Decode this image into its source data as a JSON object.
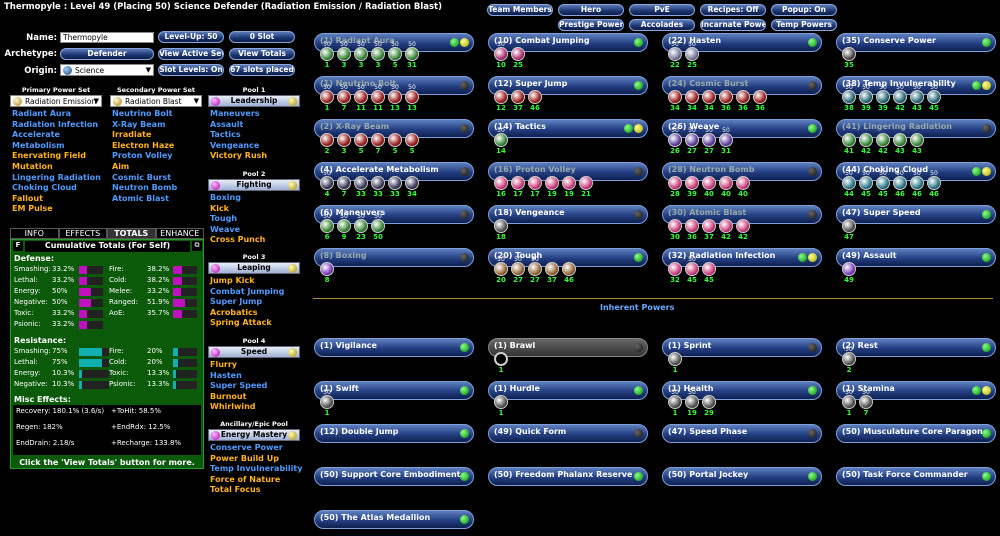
{
  "title": "Thermopyle : Level 49 (Placing 50) Science Defender (Radiation Emission / Radiation Blast)",
  "top_buttons": {
    "team_members": "Team Members",
    "hero": "Hero",
    "pve": "PvE",
    "recipes": "Recipes: Off",
    "popup": "Popup: On",
    "prestige": "Prestige Powers",
    "accolades": "Accolades",
    "incarnate": "Incarnate Powers",
    "temp": "Temp Powers"
  },
  "form": {
    "name_label": "Name:",
    "name_value": "Thermopyle",
    "archetype_label": "Archetype:",
    "archetype_value": "Defender",
    "origin_label": "Origin:",
    "origin_value": "Science",
    "level_up": "Level-Up: 50",
    "zero_slot": "0 Slot",
    "view_active_sets": "View Active Sets",
    "view_totals": "View Totals",
    "slot_levels": "Slot Levels: On",
    "slots_placed": "67 slots placed"
  },
  "primary": {
    "header": "Primary Power Set",
    "value": "Radiation Emission",
    "powers": [
      {
        "t": "Radiant Aura",
        "c": "blue"
      },
      {
        "t": "Radiation Infection",
        "c": "blue"
      },
      {
        "t": "Accelerate",
        "c": "blue"
      },
      {
        "t": "Metabolism",
        "c": "blue"
      },
      {
        "t": "Enervating Field",
        "c": "orange"
      },
      {
        "t": "Mutation",
        "c": "orange"
      },
      {
        "t": "Lingering Radiation",
        "c": "blue"
      },
      {
        "t": "Choking Cloud",
        "c": "blue"
      },
      {
        "t": "Fallout",
        "c": "orange"
      },
      {
        "t": "EM Pulse",
        "c": "orange"
      }
    ]
  },
  "secondary": {
    "header": "Secondary Power Set",
    "value": "Radiation Blast",
    "powers": [
      {
        "t": "Neutrino Bolt",
        "c": "blue"
      },
      {
        "t": "X-Ray Beam",
        "c": "blue"
      },
      {
        "t": "Irradiate",
        "c": "orange"
      },
      {
        "t": "Electron Haze",
        "c": "orange"
      },
      {
        "t": "Proton Volley",
        "c": "blue"
      },
      {
        "t": "Aim",
        "c": "orange"
      },
      {
        "t": "Cosmic Burst",
        "c": "blue"
      },
      {
        "t": "Neutron Bomb",
        "c": "blue"
      },
      {
        "t": "Atomic Blast",
        "c": "blue"
      }
    ]
  },
  "pools": [
    {
      "header": "Pool 1",
      "name": "Leadership",
      "powers": [
        {
          "t": "Maneuvers",
          "c": "blue"
        },
        {
          "t": "Assault",
          "c": "blue"
        },
        {
          "t": "Tactics",
          "c": "blue"
        },
        {
          "t": "Vengeance",
          "c": "blue"
        },
        {
          "t": "Victory Rush",
          "c": "orange"
        }
      ]
    },
    {
      "header": "Pool 2",
      "name": "Fighting",
      "powers": [
        {
          "t": "Boxing",
          "c": "blue"
        },
        {
          "t": "Kick",
          "c": "orange"
        },
        {
          "t": "Tough",
          "c": "blue"
        },
        {
          "t": "Weave",
          "c": "blue"
        },
        {
          "t": "Cross Punch",
          "c": "orange"
        }
      ]
    },
    {
      "header": "Pool 3",
      "name": "Leaping",
      "powers": [
        {
          "t": "Jump Kick",
          "c": "orange"
        },
        {
          "t": "Combat Jumping",
          "c": "blue"
        },
        {
          "t": "Super Jump",
          "c": "blue"
        },
        {
          "t": "Acrobatics",
          "c": "orange"
        },
        {
          "t": "Spring Attack",
          "c": "orange"
        }
      ]
    },
    {
      "header": "Pool 4",
      "name": "Speed",
      "powers": [
        {
          "t": "Flurry",
          "c": "orange"
        },
        {
          "t": "Hasten",
          "c": "blue"
        },
        {
          "t": "Super Speed",
          "c": "blue"
        },
        {
          "t": "Burnout",
          "c": "orange"
        },
        {
          "t": "Whirlwind",
          "c": "orange"
        }
      ]
    },
    {
      "header": "Ancillary/Epic Pool",
      "name": "Energy Mastery",
      "powers": [
        {
          "t": "Conserve Power",
          "c": "blue"
        },
        {
          "t": "Power Build Up",
          "c": "orange"
        },
        {
          "t": "Temp Invulnerability",
          "c": "blue"
        },
        {
          "t": "Force of Nature",
          "c": "orange"
        },
        {
          "t": "Total Focus",
          "c": "orange"
        }
      ]
    }
  ],
  "tabs": [
    "INFO",
    "EFFECTS",
    "TOTALS",
    "ENHANCE"
  ],
  "totals": {
    "title": "Cumulative Totals (For Self)",
    "f": "F",
    "defense_h": "Defense:",
    "resistance_h": "Resistance:",
    "misc_h": "Misc Effects:",
    "defense": [
      {
        "l": "Smashing:",
        "v": "33.2%",
        "p": 33.2
      },
      {
        "l": "Lethal:",
        "v": "33.2%",
        "p": 33.2
      },
      {
        "l": "Energy:",
        "v": "50%",
        "p": 50
      },
      {
        "l": "Negative:",
        "v": "50%",
        "p": 50
      },
      {
        "l": "Toxic:",
        "v": "33.2%",
        "p": 33.2
      },
      {
        "l": "Psionic:",
        "v": "33.2%",
        "p": 33.2
      }
    ],
    "defense2": [
      {
        "l": "Fire:",
        "v": "38.2%",
        "p": 38.2
      },
      {
        "l": "Cold:",
        "v": "38.2%",
        "p": 38.2
      },
      {
        "l": "Melee:",
        "v": "33.2%",
        "p": 33.2
      },
      {
        "l": "Ranged:",
        "v": "51.9%",
        "p": 51.9
      },
      {
        "l": "AoE:",
        "v": "35.7%",
        "p": 35.7
      }
    ],
    "resistance": [
      {
        "l": "Smashing:",
        "v": "75%",
        "p": 75
      },
      {
        "l": "Lethal:",
        "v": "75%",
        "p": 75
      },
      {
        "l": "Energy:",
        "v": "10.3%",
        "p": 10.3
      },
      {
        "l": "Negative:",
        "v": "10.3%",
        "p": 10.3
      }
    ],
    "resistance2": [
      {
        "l": "Fire:",
        "v": "20%",
        "p": 20
      },
      {
        "l": "Cold:",
        "v": "20%",
        "p": 20
      },
      {
        "l": "Toxic:",
        "v": "13.3%",
        "p": 13.3
      },
      {
        "l": "Psionic:",
        "v": "13.3%",
        "p": 13.3
      }
    ],
    "misc": [
      "Recovery: 180.1% (3.6/s)",
      "+ToHit: 58.5%",
      "Regen: 182%",
      "+EndRdx: 12.5%",
      "EndDrain: 2.18/s",
      "+Recharge: 133.8%"
    ],
    "footer": "Click the 'View Totals' button for more."
  },
  "slots": [
    {
      "n": "(1) Radiant Aura",
      "dim": true,
      "led": "y",
      "e": [
        [
          "50",
          "1"
        ],
        [
          "50",
          "3"
        ],
        [
          "50",
          "3"
        ],
        [
          "50",
          "3"
        ],
        [
          "50",
          "5"
        ],
        [
          "50",
          "31"
        ]
      ],
      "c": "#3a8a3a"
    },
    {
      "n": "(10) Combat Jumping",
      "led": "g",
      "e": [
        [
          "50",
          "10"
        ],
        [
          "",
          "25"
        ]
      ],
      "c": "#b03070"
    },
    {
      "n": "(22) Hasten",
      "led": "g",
      "e": [
        [
          "50",
          "22"
        ],
        [
          "50",
          "25"
        ]
      ],
      "c": "#7a7aa0"
    },
    {
      "n": "(35) Conserve Power",
      "led": "g",
      "e": [
        [
          "",
          "35"
        ]
      ],
      "c": "#4a4a4a"
    },
    {
      "n": "(1) Neutrino Bolt",
      "dim": true,
      "led": "d",
      "e": [
        [
          "50",
          "1"
        ],
        [
          "50",
          "7"
        ],
        [
          "50",
          "11"
        ],
        [
          "50",
          "11"
        ],
        [
          "50",
          "13"
        ],
        [
          "50",
          "13"
        ]
      ],
      "c": "#a02020"
    },
    {
      "n": "(12) Super Jump",
      "led": "g",
      "e": [
        [
          "",
          "12"
        ],
        [
          "",
          "37"
        ],
        [
          "",
          "46"
        ]
      ],
      "c": "#a02020"
    },
    {
      "n": "(24) Cosmic Burst",
      "dim": true,
      "led": "d",
      "e": [
        [
          "",
          "34"
        ],
        [
          "",
          "34"
        ],
        [
          "",
          "34"
        ],
        [
          "",
          "36"
        ],
        [
          "",
          "36"
        ],
        [
          "",
          "36"
        ]
      ],
      "c": "#a02020"
    },
    {
      "n": "(38) Temp Invulnerability",
      "led": "y",
      "e": [
        [
          "50",
          "38"
        ],
        [
          "50",
          "39"
        ],
        [
          "50",
          "39"
        ],
        [
          "50",
          "42"
        ],
        [
          "50",
          "43"
        ],
        [
          "50",
          "45"
        ]
      ],
      "c": "#2a6a7a"
    },
    {
      "n": "(2) X-Ray Beam",
      "dim": true,
      "led": "d",
      "e": [
        [
          "",
          "2"
        ],
        [
          "",
          "3"
        ],
        [
          "",
          "5"
        ],
        [
          "",
          "7"
        ],
        [
          "",
          "5"
        ],
        [
          "",
          "5"
        ]
      ],
      "c": "#a02020"
    },
    {
      "n": "(14) Tactics",
      "led": "y",
      "e": [
        [
          "50",
          "14"
        ]
      ],
      "c": "#3a8a3a"
    },
    {
      "n": "(26) Weave",
      "led": "g",
      "e": [
        [
          "50",
          "26"
        ],
        [
          "50",
          "27"
        ],
        [
          "50",
          "27"
        ],
        [
          "50",
          "31"
        ]
      ],
      "c": "#6040a0"
    },
    {
      "n": "(41) Lingering Radiation",
      "dim": true,
      "led": "d",
      "e": [
        [
          "",
          "41"
        ],
        [
          "",
          "42"
        ],
        [
          "",
          "42"
        ],
        [
          "",
          "43"
        ],
        [
          "",
          "43"
        ]
      ],
      "c": "#3a8a3a"
    },
    {
      "n": "(4) Accelerate Metabolism",
      "led": "d",
      "e": [
        [
          "50",
          "4"
        ],
        [
          "",
          "7"
        ],
        [
          "",
          "33"
        ],
        [
          "",
          "33"
        ],
        [
          "",
          "33"
        ],
        [
          "",
          "34"
        ]
      ],
      "c": "#3a3a5a"
    },
    {
      "n": "(16) Proton Volley",
      "dim": true,
      "led": "d",
      "e": [
        [
          "",
          "16"
        ],
        [
          "",
          "17"
        ],
        [
          "",
          "17"
        ],
        [
          "",
          "19"
        ],
        [
          "",
          "19"
        ],
        [
          "",
          "21"
        ]
      ],
      "c": "#d04080"
    },
    {
      "n": "(28) Neutron Bomb",
      "dim": true,
      "led": "d",
      "e": [
        [
          "",
          "28"
        ],
        [
          "",
          "39"
        ],
        [
          "",
          "40"
        ],
        [
          "",
          "40"
        ],
        [
          "",
          "40"
        ]
      ],
      "c": "#d04080"
    },
    {
      "n": "(44) Choking Cloud",
      "led": "y",
      "e": [
        [
          "50",
          "44"
        ],
        [
          "50",
          "45"
        ],
        [
          "50",
          "45"
        ],
        [
          "50",
          "46"
        ],
        [
          "50",
          "46"
        ],
        [
          "50",
          "46"
        ]
      ],
      "c": "#2a7a8a"
    },
    {
      "n": "(6) Maneuvers",
      "led": "d",
      "e": [
        [
          "50",
          "6"
        ],
        [
          "50",
          "9"
        ],
        [
          "50",
          "23"
        ],
        [
          "50",
          "50"
        ]
      ],
      "c": "#3a8a3a"
    },
    {
      "n": "(18) Vengeance",
      "led": "d",
      "e": [
        [
          "",
          "18"
        ]
      ],
      "c": "#555"
    },
    {
      "n": "(30) Atomic Blast",
      "dim": true,
      "led": "d",
      "e": [
        [
          "",
          "30"
        ],
        [
          "",
          "36"
        ],
        [
          "",
          "37"
        ],
        [
          "",
          "42"
        ],
        [
          "",
          "42"
        ]
      ],
      "c": "#d04080"
    },
    {
      "n": "(47) Super Speed",
      "led": "g",
      "e": [
        [
          "",
          "47"
        ]
      ],
      "c": "#555"
    },
    {
      "n": "(8) Boxing",
      "dim": true,
      "led": "d",
      "e": [
        [
          "",
          "8"
        ]
      ],
      "c": "#8040c0"
    },
    {
      "n": "(20) Tough",
      "led": "g",
      "e": [
        [
          "50",
          "20"
        ],
        [
          "50",
          "27"
        ],
        [
          "50",
          "27"
        ],
        [
          "",
          "37"
        ],
        [
          "",
          "46"
        ]
      ],
      "c": "#9a6a3a"
    },
    {
      "n": "(32) Radiation Infection",
      "led": "y",
      "e": [
        [
          "",
          "32"
        ],
        [
          "50",
          "45"
        ],
        [
          "",
          "45"
        ]
      ],
      "c": "#d04080"
    },
    {
      "n": "(49) Assault",
      "led": "g",
      "e": [
        [
          "",
          "49"
        ]
      ],
      "c": "#8040c0"
    }
  ],
  "inherent_header": "Inherent Powers",
  "inherent": [
    {
      "n": "(1) Vigilance",
      "led": "g",
      "e": []
    },
    {
      "n": "(1) Brawl",
      "brawl": true,
      "led": "d",
      "e": [
        [
          "",
          "1"
        ]
      ]
    },
    {
      "n": "(1) Sprint",
      "led": "d",
      "e": [
        [
          "",
          "1"
        ]
      ]
    },
    {
      "n": "(2) Rest",
      "led": "g",
      "e": [
        [
          "50",
          "2"
        ]
      ]
    },
    {
      "n": "(1) Swift",
      "led": "g",
      "e": [
        [
          "50",
          "1"
        ]
      ]
    },
    {
      "n": "(1) Hurdle",
      "led": "g",
      "e": [
        [
          "",
          "1"
        ]
      ]
    },
    {
      "n": "(1) Health",
      "led": "g",
      "e": [
        [
          "50",
          "1"
        ],
        [
          "50",
          "19"
        ],
        [
          "",
          "29"
        ]
      ]
    },
    {
      "n": "(1) Stamina",
      "led": "y",
      "e": [
        [
          "50",
          "1"
        ],
        [
          "50",
          "7"
        ]
      ]
    },
    {
      "n": "(12) Double Jump",
      "led": "g",
      "e": []
    },
    {
      "n": "(49) Quick Form",
      "led": "d",
      "e": []
    },
    {
      "n": "(47) Speed Phase",
      "led": "d",
      "e": []
    },
    {
      "n": "(50) Musculature Core Paragon",
      "led": "g",
      "e": []
    },
    {
      "n": "(50) Support Core Embodiment",
      "led": "g",
      "e": []
    },
    {
      "n": "(50) Freedom Phalanx Reserve",
      "led": "g",
      "e": []
    },
    {
      "n": "(50) Portal Jockey",
      "led": "g",
      "e": []
    },
    {
      "n": "(50) Task Force Commander",
      "led": "g",
      "e": []
    },
    {
      "n": "(50) The Atlas Medallion",
      "led": "g",
      "e": []
    }
  ]
}
